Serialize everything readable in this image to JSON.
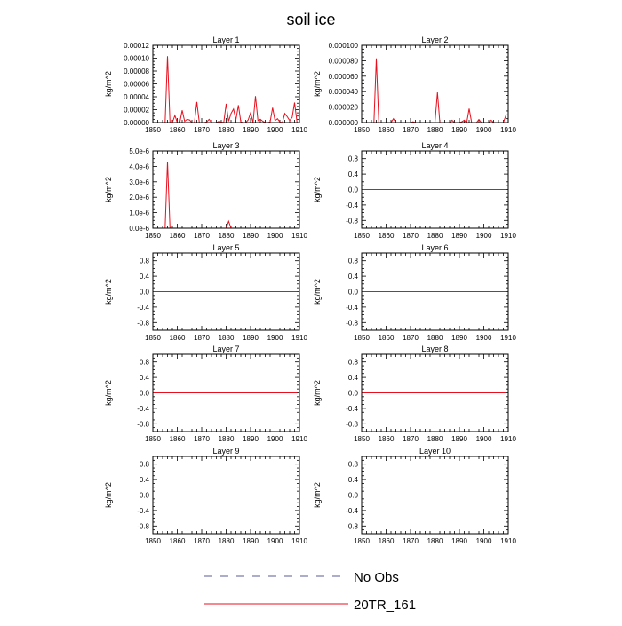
{
  "title": "soil ice",
  "colors": {
    "obs": "#5a5a9a",
    "model": "#e8101e",
    "axis": "#000000"
  },
  "legend": {
    "entries": [
      {
        "label": "No Obs",
        "style": "dashed",
        "color": "#5a5a9a"
      },
      {
        "label": "20TR_161",
        "style": "solid",
        "color": "#e8101e"
      }
    ]
  },
  "chart_data": [
    {
      "type": "line",
      "title": "Layer 1",
      "ylabel": "kg/m^2",
      "xlim": [
        1850,
        1910
      ],
      "xticks": [
        1850,
        1860,
        1870,
        1880,
        1890,
        1900,
        1910
      ],
      "ylim": [
        0,
        0.00012
      ],
      "yticks": [
        0,
        2e-05,
        4e-05,
        6e-05,
        8e-05,
        0.0001,
        0.00012
      ],
      "yticklabels": [
        "0.00000",
        "0.00002",
        "0.00004",
        "0.00006",
        "0.00008",
        "0.00010",
        "0.00012"
      ],
      "series": [
        {
          "name": "20TR_161",
          "x": [
            1850,
            1855,
            1856,
            1857,
            1858,
            1859,
            1860,
            1861,
            1862,
            1863,
            1864,
            1865,
            1866,
            1867,
            1868,
            1869,
            1870,
            1871,
            1872,
            1873,
            1874,
            1875,
            1876,
            1877,
            1878,
            1879,
            1880,
            1881,
            1882,
            1883,
            1884,
            1885,
            1886,
            1887,
            1888,
            1889,
            1890,
            1891,
            1892,
            1893,
            1894,
            1895,
            1896,
            1897,
            1898,
            1899,
            1900,
            1901,
            1902,
            1903,
            1904,
            1905,
            1906,
            1907,
            1908,
            1909
          ],
          "y": [
            0,
            0,
            0.000103,
            0,
            0,
            1.1e-05,
            0,
            0,
            1.9e-05,
            2e-06,
            5e-06,
            4e-06,
            0,
            0,
            3.2e-05,
            0,
            0,
            0,
            1e-06,
            5e-06,
            0,
            0,
            0,
            2e-06,
            1e-06,
            0,
            2.9e-05,
            2e-06,
            1.4e-05,
            2.1e-05,
            4e-06,
            2.7e-05,
            1e-06,
            0,
            0,
            4e-06,
            1.5e-05,
            0,
            4.1e-05,
            3e-06,
            5e-06,
            2e-06,
            0,
            0,
            1e-06,
            2.3e-05,
            3e-06,
            6e-06,
            1e-06,
            0,
            1.4e-05,
            9e-06,
            3e-06,
            8e-06,
            3.1e-05,
            0
          ]
        }
      ]
    },
    {
      "type": "line",
      "title": "Layer 2",
      "ylabel": "kg/m^2",
      "xlim": [
        1850,
        1910
      ],
      "xticks": [
        1850,
        1860,
        1870,
        1880,
        1890,
        1900,
        1910
      ],
      "ylim": [
        0,
        0.0001
      ],
      "yticks": [
        0,
        2e-05,
        4e-05,
        6e-05,
        8e-05,
        0.0001
      ],
      "yticklabels": [
        "0.000000",
        "0.000020",
        "0.000040",
        "0.000060",
        "0.000080",
        "0.000100"
      ],
      "series": [
        {
          "name": "20TR_161",
          "x": [
            1850,
            1855,
            1856,
            1857,
            1858,
            1862,
            1863,
            1864,
            1870,
            1871,
            1872,
            1878,
            1879,
            1880,
            1881,
            1882,
            1885,
            1886,
            1887,
            1888,
            1890,
            1891,
            1892,
            1893,
            1894,
            1895,
            1897,
            1898,
            1899,
            1902,
            1903,
            1904,
            1905,
            1908,
            1909
          ],
          "y": [
            0,
            0,
            8.3e-05,
            0,
            0,
            0,
            5e-06,
            0,
            0,
            1e-06,
            0,
            0,
            0,
            0,
            3.9e-05,
            0,
            0,
            0,
            3e-06,
            0,
            0,
            1e-06,
            3e-06,
            0,
            1.8e-05,
            0,
            0,
            4e-06,
            0,
            0,
            3e-06,
            0,
            0,
            0,
            9e-06
          ]
        }
      ]
    },
    {
      "type": "line",
      "title": "Layer 3",
      "ylabel": "kg/m^2",
      "xlim": [
        1850,
        1910
      ],
      "xticks": [
        1850,
        1860,
        1870,
        1880,
        1890,
        1900,
        1910
      ],
      "ylim": [
        0,
        5e-06
      ],
      "yticks": [
        0,
        1e-06,
        2e-06,
        3e-06,
        4e-06,
        5e-06
      ],
      "yticklabels": [
        "0.0e-6",
        "1.0e-6",
        "2.0e-6",
        "3.0e-6",
        "4.0e-6",
        "5.0e-6"
      ],
      "series": [
        {
          "name": "20TR_161",
          "x": [
            1850,
            1855,
            1856,
            1857,
            1858,
            1880,
            1881,
            1882,
            1909
          ],
          "y": [
            0,
            0,
            4.3e-06,
            0,
            0,
            0,
            4.5e-07,
            0,
            0
          ]
        }
      ]
    },
    {
      "type": "line",
      "title": "Layer 4",
      "ylabel": "kg/m^2",
      "xlim": [
        1850,
        1910
      ],
      "xticks": [
        1850,
        1860,
        1870,
        1880,
        1890,
        1900,
        1910
      ],
      "ylim": [
        -1,
        1
      ],
      "yticks": [
        -0.8,
        -0.4,
        0,
        0.4,
        0.8
      ],
      "yticklabels": [
        "-0.8",
        "-0.4",
        "0.0",
        "0.4",
        "0.8"
      ],
      "series": [
        {
          "name": "20TR_161",
          "x": [
            1850,
            1909
          ],
          "y": [
            0,
            0
          ]
        }
      ]
    },
    {
      "type": "line",
      "title": "Layer 5",
      "ylabel": "kg/m^2",
      "xlim": [
        1850,
        1910
      ],
      "xticks": [
        1850,
        1860,
        1870,
        1880,
        1890,
        1900,
        1910
      ],
      "ylim": [
        -1,
        1
      ],
      "yticks": [
        -0.8,
        -0.4,
        0,
        0.4,
        0.8
      ],
      "yticklabels": [
        "-0.8",
        "-0.4",
        "0.0",
        "0.4",
        "0.8"
      ],
      "series": [
        {
          "name": "20TR_161",
          "x": [
            1850,
            1909
          ],
          "y": [
            0,
            0
          ]
        }
      ]
    },
    {
      "type": "line",
      "title": "Layer 6",
      "ylabel": "kg/m^2",
      "xlim": [
        1850,
        1910
      ],
      "xticks": [
        1850,
        1860,
        1870,
        1880,
        1890,
        1900,
        1910
      ],
      "ylim": [
        -1,
        1
      ],
      "yticks": [
        -0.8,
        -0.4,
        0,
        0.4,
        0.8
      ],
      "yticklabels": [
        "-0.8",
        "-0.4",
        "0.0",
        "0.4",
        "0.8"
      ],
      "series": [
        {
          "name": "20TR_161",
          "x": [
            1850,
            1909
          ],
          "y": [
            0,
            0
          ]
        }
      ]
    },
    {
      "type": "line",
      "title": "Layer 7",
      "ylabel": "kg/m^2",
      "xlim": [
        1850,
        1910
      ],
      "xticks": [
        1850,
        1860,
        1870,
        1880,
        1890,
        1900,
        1910
      ],
      "ylim": [
        -1,
        1
      ],
      "yticks": [
        -0.8,
        -0.4,
        0,
        0.4,
        0.8
      ],
      "yticklabels": [
        "-0.8",
        "-0.4",
        "0.0",
        "0.4",
        "0.8"
      ],
      "series": [
        {
          "name": "20TR_161",
          "x": [
            1850,
            1909
          ],
          "y": [
            0,
            0
          ]
        }
      ]
    },
    {
      "type": "line",
      "title": "Layer 8",
      "ylabel": "kg/m^2",
      "xlim": [
        1850,
        1910
      ],
      "xticks": [
        1850,
        1860,
        1870,
        1880,
        1890,
        1900,
        1910
      ],
      "ylim": [
        -1,
        1
      ],
      "yticks": [
        -0.8,
        -0.4,
        0,
        0.4,
        0.8
      ],
      "yticklabels": [
        "-0.8",
        "-0.4",
        "0.0",
        "0.4",
        "0.8"
      ],
      "series": [
        {
          "name": "20TR_161",
          "x": [
            1850,
            1909
          ],
          "y": [
            0,
            0
          ]
        }
      ]
    },
    {
      "type": "line",
      "title": "Layer 9",
      "ylabel": "kg/m^2",
      "xlim": [
        1850,
        1910
      ],
      "xticks": [
        1850,
        1860,
        1870,
        1880,
        1890,
        1900,
        1910
      ],
      "ylim": [
        -1,
        1
      ],
      "yticks": [
        -0.8,
        -0.4,
        0,
        0.4,
        0.8
      ],
      "yticklabels": [
        "-0.8",
        "-0.4",
        "0.0",
        "0.4",
        "0.8"
      ],
      "series": [
        {
          "name": "20TR_161",
          "x": [
            1850,
            1909
          ],
          "y": [
            0,
            0
          ]
        }
      ]
    },
    {
      "type": "line",
      "title": "Layer 10",
      "ylabel": "kg/m^2",
      "xlim": [
        1850,
        1910
      ],
      "xticks": [
        1850,
        1860,
        1870,
        1880,
        1890,
        1900,
        1910
      ],
      "ylim": [
        -1,
        1
      ],
      "yticks": [
        -0.8,
        -0.4,
        0,
        0.4,
        0.8
      ],
      "yticklabels": [
        "-0.8",
        "-0.4",
        "0.0",
        "0.4",
        "0.8"
      ],
      "series": [
        {
          "name": "20TR_161",
          "x": [
            1850,
            1909
          ],
          "y": [
            0,
            0
          ]
        }
      ]
    }
  ]
}
